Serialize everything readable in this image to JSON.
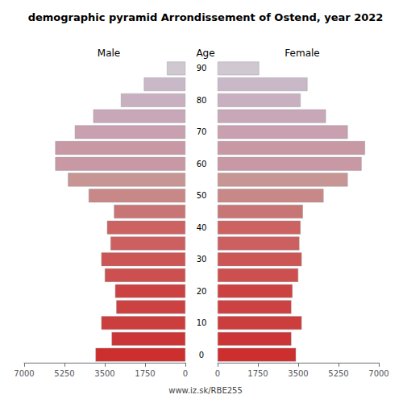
{
  "chart_data": {
    "type": "bar",
    "orientation": "horizontal",
    "title": "demographic pyramid Arrondissement of Ostend, year 2022",
    "ylabel": "Age",
    "annotations": [
      "www.iz.sk/RBE255"
    ],
    "categories": [
      "0",
      null,
      "10",
      null,
      "20",
      null,
      "30",
      null,
      "40",
      null,
      "50",
      null,
      "60",
      null,
      "70",
      null,
      "80",
      null,
      "90"
    ],
    "series": [
      {
        "name": "Male",
        "values": [
          3900,
          3200,
          3650,
          3000,
          3050,
          3500,
          3650,
          3250,
          3400,
          3100,
          4200,
          5100,
          5650,
          5650,
          4800,
          4000,
          2800,
          1800,
          800
        ],
        "colors": [
          "#cd2e2e",
          "#cc3535",
          "#cc3d3d",
          "#cc4242",
          "#cc4242",
          "#cc5050",
          "#cc5555",
          "#cc6060",
          "#cc6262",
          "#c87575",
          "#c88888",
          "#c89595",
          "#c898a5",
          "#c898a5",
          "#c8a0b0",
          "#c8a8b8",
          "#c8b0c0",
          "#c8b8c8",
          "#d0c8d0"
        ]
      },
      {
        "name": "Female",
        "values": [
          3400,
          3200,
          3650,
          3200,
          3250,
          3500,
          3650,
          3550,
          3600,
          3700,
          4600,
          5650,
          6250,
          6400,
          5650,
          4700,
          3600,
          3900,
          1800
        ],
        "colors": [
          "#cd2e2e",
          "#cc3535",
          "#cc3d3d",
          "#cc4242",
          "#cc4242",
          "#cc5050",
          "#cc5555",
          "#cc6060",
          "#cc6262",
          "#c87575",
          "#c88888",
          "#c89595",
          "#c898a5",
          "#c898a5",
          "#c8a0b0",
          "#c8a8b8",
          "#c8b0c0",
          "#c8b8c8",
          "#d0c8d0"
        ]
      }
    ],
    "xlim": [
      0,
      7000
    ],
    "xticks": [
      0,
      1750,
      3500,
      5250,
      7000
    ],
    "grid": false
  }
}
